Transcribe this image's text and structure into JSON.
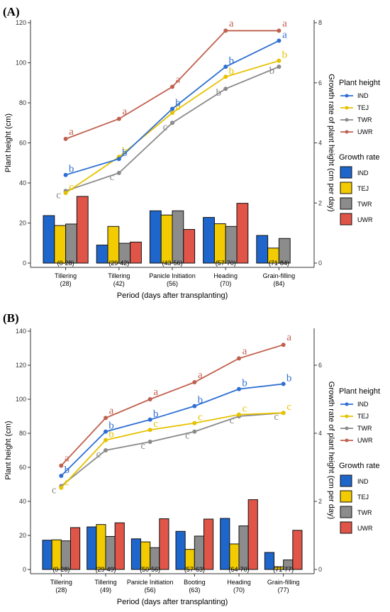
{
  "panel_labels": [
    "(A)",
    "(B)"
  ],
  "legend": {
    "line_title": "Plant height",
    "bar_title": "Growth rate",
    "groups": [
      "IND",
      "TEJ",
      "TWR",
      "UWR"
    ]
  },
  "colors": {
    "IND_line": "#2e6fd3",
    "TEJ_line": "#e6c200",
    "TWR_line": "#8a8a8a",
    "UWR_line": "#c0604f",
    "IND_bar": "#1f66cc",
    "TEJ_bar": "#f2cc00",
    "TWR_bar": "#8c8c8c",
    "UWR_bar": "#e05548"
  },
  "chart_data": [
    {
      "type": "bar+line",
      "panel": "(A)",
      "xlabel": "Period (days after transplanting)",
      "ylabel": "Plant height (cm)",
      "y2label": "Growth rate of plant height (cm per day)",
      "ylim": [
        0,
        120
      ],
      "y2lim": [
        0,
        8
      ],
      "yticks": [
        0,
        20,
        40,
        60,
        80,
        100,
        120
      ],
      "y2ticks": [
        0,
        2,
        4,
        6,
        8
      ],
      "categories": [
        "Tillering\n(28)",
        "Tillering\n(42)",
        "Panicle Initiation\n(56)",
        "Heading\n(70)",
        "Grain-filling\n(84)"
      ],
      "bar_period_labels": [
        "(0-28)",
        "(29-42)",
        "(43-56)",
        "(57-70)",
        "(71-84)"
      ],
      "line_series": [
        {
          "name": "IND",
          "values": [
            44,
            52,
            77,
            98,
            111
          ],
          "letters": [
            "b",
            "b",
            "b",
            "b",
            "a"
          ]
        },
        {
          "name": "TEJ",
          "values": [
            35,
            53,
            75,
            93,
            101
          ],
          "letters": [
            "c",
            "b",
            "b",
            "b",
            "b"
          ]
        },
        {
          "name": "TWR",
          "values": [
            36,
            45,
            70,
            87,
            98
          ],
          "letters": [
            "c",
            "c",
            "c",
            "b",
            "b"
          ]
        },
        {
          "name": "UWR",
          "values": [
            62,
            72,
            88,
            116,
            116
          ],
          "letters": [
            "a",
            "a",
            "a",
            "a",
            "a"
          ]
        }
      ],
      "bar_series": [
        {
          "name": "IND",
          "values": [
            1.58,
            0.6,
            1.74,
            1.52,
            0.92
          ]
        },
        {
          "name": "TEJ",
          "values": [
            1.25,
            1.22,
            1.6,
            1.31,
            0.5
          ]
        },
        {
          "name": "TWR",
          "values": [
            1.3,
            0.66,
            1.74,
            1.22,
            0.82
          ]
        },
        {
          "name": "UWR",
          "values": [
            2.22,
            0.7,
            1.12,
            1.99,
            0
          ]
        }
      ]
    },
    {
      "type": "bar+line",
      "panel": "(B)",
      "xlabel": "Period (days after transplanting)",
      "ylabel": "Plant height (cm)",
      "y2label": "Growth rate of plant height (cm per day)",
      "ylim": [
        0,
        140
      ],
      "y2lim": [
        0,
        7
      ],
      "yticks": [
        0,
        20,
        40,
        60,
        80,
        100,
        120,
        140
      ],
      "y2ticks": [
        0,
        2,
        4,
        6
      ],
      "categories": [
        "Tillering\n(28)",
        "Tillering\n(49)",
        "Panicle Initiation\n(56)",
        "Booting\n(63)",
        "Heading\n(70)",
        "Grain-filling\n(77)"
      ],
      "bar_period_labels": [
        "(0-28)",
        "(29-49)",
        "(50-56)",
        "(57-63)",
        "(64-70)",
        "(71-77)"
      ],
      "line_series": [
        {
          "name": "IND",
          "values": [
            55,
            81,
            88,
            96,
            106,
            109
          ],
          "letters": [
            "b",
            "b",
            "b",
            "b",
            "b",
            "b"
          ]
        },
        {
          "name": "TEJ",
          "values": [
            48,
            76,
            82,
            86,
            91,
            92
          ],
          "letters": [
            "c",
            "b",
            "c",
            "c",
            "c",
            "c"
          ]
        },
        {
          "name": "TWR",
          "values": [
            49,
            70,
            75,
            81,
            90,
            92
          ],
          "letters": [
            "c",
            "c",
            "c",
            "c",
            "c",
            "c"
          ]
        },
        {
          "name": "UWR",
          "values": [
            61,
            89,
            100,
            110,
            124,
            132
          ],
          "letters": [
            "a",
            "a",
            "a",
            "a",
            "a",
            "a"
          ]
        }
      ],
      "bar_series": [
        {
          "name": "IND",
          "values": [
            0.86,
            1.25,
            0.9,
            1.12,
            1.5,
            0.5
          ]
        },
        {
          "name": "TEJ",
          "values": [
            0.87,
            1.32,
            0.81,
            0.59,
            0.75,
            0.08
          ]
        },
        {
          "name": "TWR",
          "values": [
            0.84,
            0.97,
            0.64,
            0.98,
            1.28,
            0.28
          ]
        },
        {
          "name": "UWR",
          "values": [
            1.23,
            1.37,
            1.49,
            1.48,
            2.05,
            1.15
          ]
        }
      ]
    }
  ]
}
